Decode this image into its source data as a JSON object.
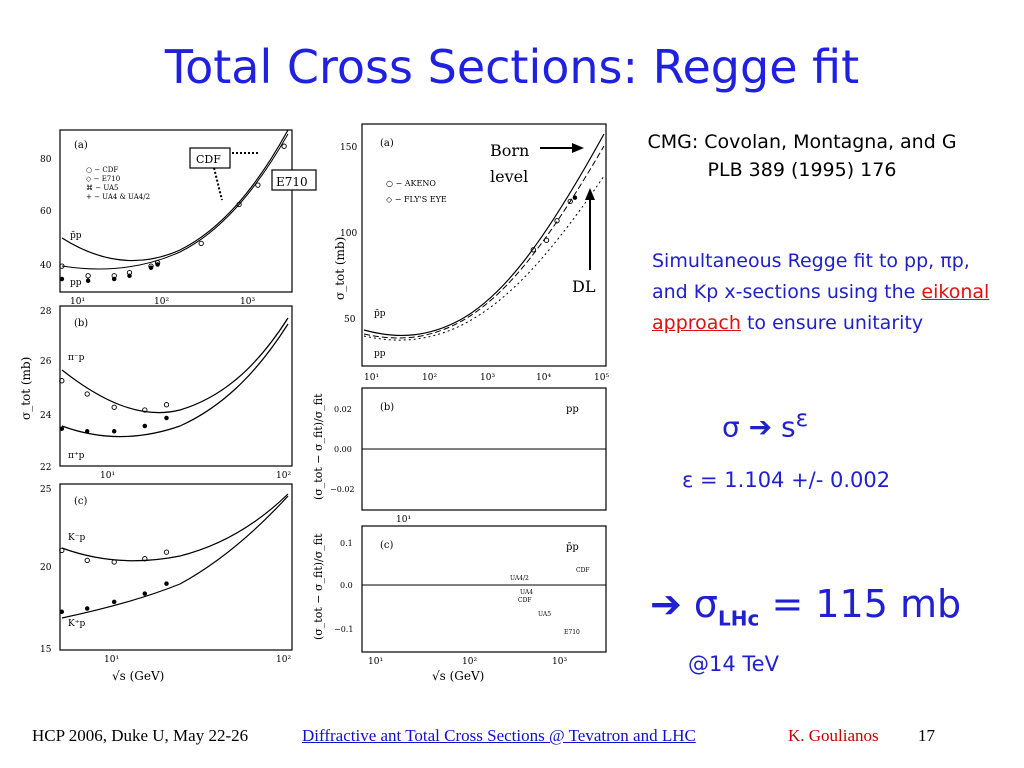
{
  "slide": {
    "title": "Total Cross Sections: Regge fit",
    "reference_line1": "CMG: Covolan, Montagna, and G",
    "reference_line2": "PLB 389 (1995) 176",
    "description_pre": "Simultaneous Regge fit to pp, πp, and Kp x-sections using the ",
    "description_link": "eikonal approach",
    "description_post": " to ensure unitarity",
    "sigma_relation": "σ ➔ s",
    "sigma_exponent": "ε",
    "epsilon_value": "ε = 1.104 +/- 0.002",
    "lhc_prefix": "➔ σ",
    "lhc_subscript": "LHc",
    "lhc_value": " = 115 mb",
    "lhc_energy": "@14 TeV"
  },
  "callouts": {
    "cdf": "CDF",
    "e710": "E710",
    "born": "Born",
    "level": "level",
    "dl": "DL"
  },
  "footer": {
    "conference": "HCP 2006, Duke U, May 22-26",
    "talk_title": "Diffractive ant Total Cross Sections @ Tevatron and LHC",
    "author": "K. Goulianos",
    "page": "17"
  },
  "chart_data": [
    {
      "type": "scatter",
      "panel": "(a)",
      "x_scale": "log",
      "x_ticks": [
        "10¹",
        "10²",
        "10³"
      ],
      "y_ticks": [
        "40",
        "60",
        "80"
      ],
      "legend": [
        "○ − CDF",
        "◇ − E710",
        "⌘ − UA5",
        "+ − UA4 & UA4/2"
      ],
      "curve_labels": [
        "p̄p",
        "pp"
      ],
      "series": [
        {
          "name": "p̄p",
          "x": [
            5,
            10,
            20,
            30,
            53,
            63,
            200,
            546,
            900,
            1800
          ],
          "y": [
            43,
            40,
            40,
            41,
            43,
            44,
            50,
            62,
            68,
            80
          ]
        },
        {
          "name": "pp",
          "x": [
            5,
            10,
            20,
            30,
            53,
            63
          ],
          "y": [
            39,
            38.5,
            39,
            40,
            42.5,
            43.5
          ]
        }
      ]
    },
    {
      "type": "scatter",
      "panel": "(b)",
      "x_scale": "log",
      "x_ticks": [
        "10¹",
        "10²"
      ],
      "y_ticks": [
        "22",
        "24",
        "26",
        "28"
      ],
      "ylabel": "σ_tot (mb)",
      "curve_labels": [
        "π⁻p",
        "π⁺p"
      ],
      "series": [
        {
          "name": "π⁻p",
          "x": [
            5,
            7,
            10,
            15,
            20
          ],
          "y": [
            25.2,
            24.7,
            24.2,
            24.1,
            24.3
          ]
        },
        {
          "name": "π⁺p",
          "x": [
            5,
            7,
            10,
            15,
            20
          ],
          "y": [
            23.4,
            23.3,
            23.3,
            23.5,
            23.8
          ]
        }
      ]
    },
    {
      "type": "scatter",
      "panel": "(c)",
      "x_scale": "log",
      "x_ticks": [
        "10¹",
        "10²"
      ],
      "y_ticks": [
        "15",
        "20",
        "25"
      ],
      "xlabel": "√s (GeV)",
      "curve_labels": [
        "K⁻p",
        "K⁺p"
      ],
      "series": [
        {
          "name": "K⁻p",
          "x": [
            5,
            7,
            10,
            15,
            20
          ],
          "y": [
            21.0,
            20.4,
            20.3,
            20.5,
            20.9
          ]
        },
        {
          "name": "K⁺p",
          "x": [
            5,
            7,
            10,
            15,
            20
          ],
          "y": [
            17.3,
            17.5,
            17.9,
            18.4,
            19.0
          ]
        }
      ]
    },
    {
      "type": "scatter",
      "panel": "(a)",
      "x_scale": "log",
      "x_ticks": [
        "10¹",
        "10²",
        "10³",
        "10⁴",
        "10⁵"
      ],
      "y_ticks": [
        "50",
        "100",
        "150"
      ],
      "ylabel": "σ_tot (mb)",
      "legend": [
        "○ − AKENO",
        "◇ − FLY'S EYE"
      ],
      "curve_labels": [
        "p̄p",
        "pp"
      ],
      "series": [
        {
          "name": "AKENO",
          "x": [
            6000,
            10000,
            15000,
            25000
          ],
          "y": [
            95,
            100,
            110,
            120
          ]
        },
        {
          "name": "FLY'S EYE",
          "x": [
            30000
          ],
          "y": [
            122
          ]
        }
      ]
    },
    {
      "type": "scatter",
      "panel": "(b)",
      "x_scale": "log",
      "x_ticks": [
        "10¹"
      ],
      "y_ticks": [
        "0.02",
        "0.00",
        "−0.02"
      ],
      "ylabel": "(σ_tot − σ_fit)/σ_fit",
      "curve_labels": [
        "pp"
      ]
    },
    {
      "type": "scatter",
      "panel": "(c)",
      "x_scale": "log",
      "x_ticks": [
        "10¹",
        "10²",
        "10³"
      ],
      "y_ticks": [
        "0.1",
        "0.0",
        "−0.1"
      ],
      "xlabel": "√s (GeV)",
      "ylabel": "(σ_tot − σ_fit)/σ_fit",
      "curve_labels": [
        "p̄p"
      ],
      "annotations": [
        "UA4/2",
        "UA4",
        "CDF",
        "UA5",
        "CDF",
        "E710"
      ]
    }
  ]
}
